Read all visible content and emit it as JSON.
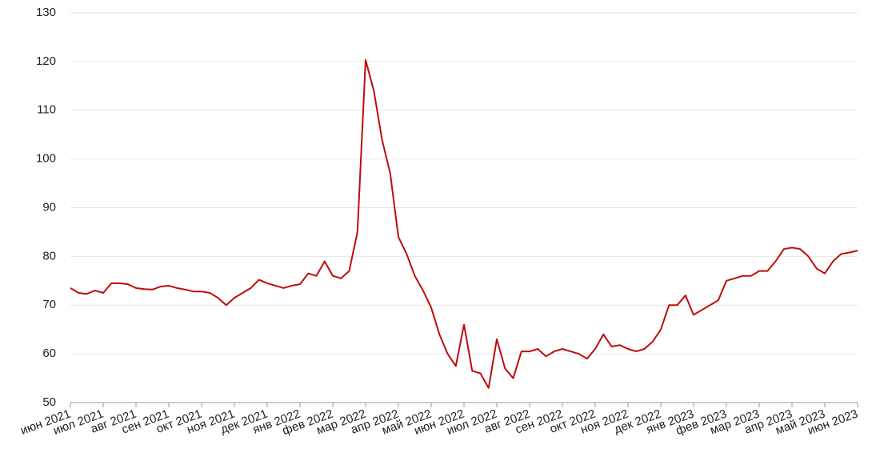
{
  "chart_data": {
    "type": "line",
    "categories": [
      "июн 2021",
      null,
      null,
      null,
      "июл 2021",
      null,
      null,
      null,
      "авг 2021",
      null,
      null,
      null,
      "сен 2021",
      null,
      null,
      null,
      "окт 2021",
      null,
      null,
      null,
      "ноя 2021",
      null,
      null,
      null,
      "дек 2021",
      null,
      null,
      null,
      "янв 2022",
      null,
      null,
      null,
      "фев 2022",
      null,
      null,
      null,
      "мар 2022",
      null,
      null,
      null,
      "апр 2022",
      null,
      null,
      null,
      "май 2022",
      null,
      null,
      null,
      "июн 2022",
      null,
      null,
      null,
      "июл 2022",
      null,
      null,
      null,
      "авг 2022",
      null,
      null,
      null,
      "сен 2022",
      null,
      null,
      null,
      "окт 2022",
      null,
      null,
      null,
      "ноя 2022",
      null,
      null,
      null,
      "дек 2022",
      null,
      null,
      null,
      "янв 2023",
      null,
      null,
      null,
      "фев 2023",
      null,
      null,
      null,
      "мар 2023",
      null,
      null,
      null,
      "апр 2023",
      null,
      null,
      null,
      "май 2023",
      null,
      null,
      null,
      "июн 2023"
    ],
    "values": [
      73.5,
      72.5,
      72.3,
      73.0,
      72.5,
      74.5,
      74.5,
      74.3,
      73.5,
      73.3,
      73.2,
      73.8,
      74.0,
      73.5,
      73.2,
      72.8,
      72.8,
      72.5,
      71.5,
      70.0,
      71.5,
      72.5,
      73.5,
      75.2,
      74.5,
      74.0,
      73.5,
      74.0,
      74.3,
      76.5,
      76.0,
      79.0,
      76.0,
      75.5,
      77.0,
      85.0,
      120.3,
      114.0,
      104.0,
      97.0,
      84.0,
      80.5,
      76.0,
      73.0,
      69.5,
      64.0,
      60.0,
      57.5,
      66.0,
      56.5,
      56.0,
      53.0,
      63.0,
      57.0,
      55.0,
      60.5,
      60.5,
      61.0,
      59.5,
      60.5,
      61.0,
      60.5,
      60.0,
      59.0,
      61.0,
      64.0,
      61.5,
      61.8,
      61.0,
      60.5,
      61.0,
      62.5,
      65.0,
      70.0,
      70.0,
      72.0,
      68.0,
      69.0,
      70.0,
      71.0,
      75.0,
      75.5,
      76.0,
      76.0,
      77.0,
      77.0,
      79.0,
      81.5,
      81.8,
      81.5,
      80.0,
      77.5,
      76.5,
      79.0,
      80.5,
      80.8,
      81.2
    ],
    "color": "#c00a0a",
    "ylim": [
      50,
      130
    ],
    "yticks": [
      50,
      60,
      70,
      80,
      90,
      100,
      110,
      120,
      130
    ],
    "grid": true
  }
}
